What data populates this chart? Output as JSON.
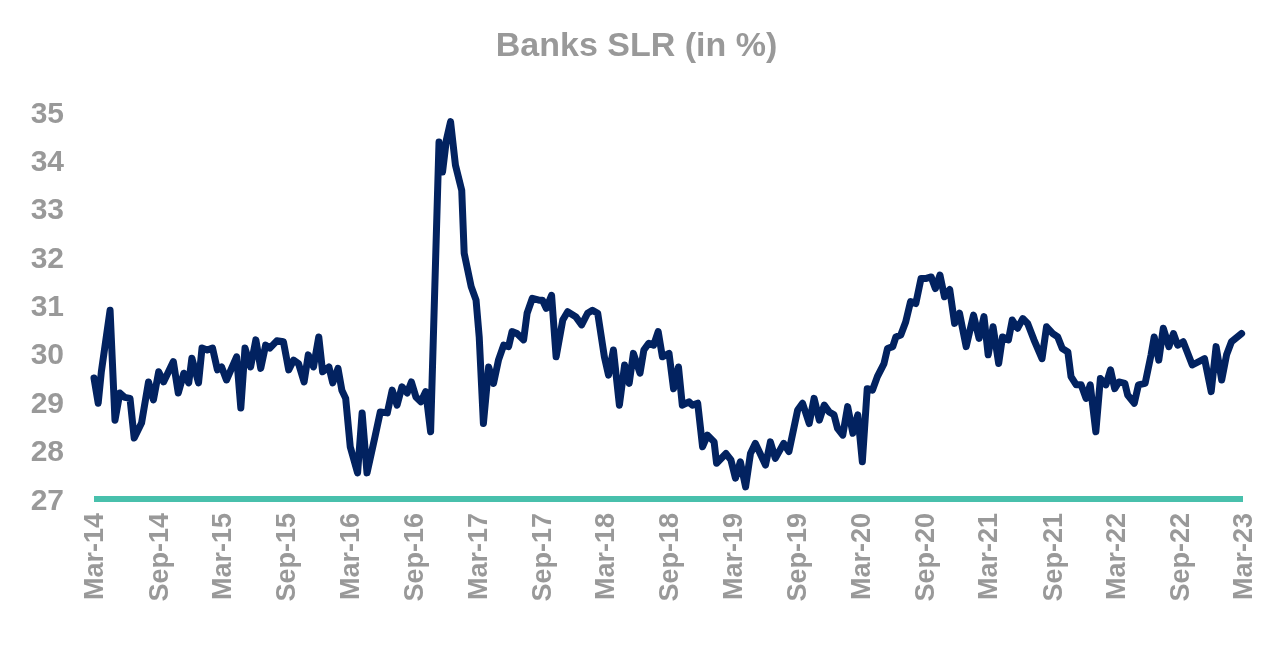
{
  "chart_data": {
    "type": "line",
    "title": "Banks SLR (in %)",
    "color": "#022260",
    "line_style": "solid",
    "marker": "none",
    "grid": false,
    "xlim": [
      "2014-03-01",
      "2023-03-01"
    ],
    "xticks": [
      {
        "value": "2014-03-01",
        "label": "Mar-14"
      },
      {
        "value": "2014-09-01",
        "label": "Sep-14"
      },
      {
        "value": "2015-03-01",
        "label": "Mar-15"
      },
      {
        "value": "2015-09-01",
        "label": "Sep-15"
      },
      {
        "value": "2016-03-01",
        "label": "Mar-16"
      },
      {
        "value": "2016-09-01",
        "label": "Sep-16"
      },
      {
        "value": "2017-03-01",
        "label": "Mar-17"
      },
      {
        "value": "2017-09-01",
        "label": "Sep-17"
      },
      {
        "value": "2018-03-01",
        "label": "Mar-18"
      },
      {
        "value": "2018-09-01",
        "label": "Sep-18"
      },
      {
        "value": "2019-03-01",
        "label": "Mar-19"
      },
      {
        "value": "2019-09-01",
        "label": "Sep-19"
      },
      {
        "value": "2020-03-01",
        "label": "Mar-20"
      },
      {
        "value": "2020-09-01",
        "label": "Sep-20"
      },
      {
        "value": "2021-03-01",
        "label": "Mar-21"
      },
      {
        "value": "2021-09-01",
        "label": "Sep-21"
      },
      {
        "value": "2022-03-01",
        "label": "Mar-22"
      },
      {
        "value": "2022-09-01",
        "label": "Sep-22"
      },
      {
        "value": "2023-03-01",
        "label": "Mar-23"
      }
    ],
    "ylim": [
      27,
      35
    ],
    "yticks": [
      27,
      28,
      29,
      30,
      31,
      32,
      33,
      34,
      35
    ],
    "x": [
      "2014-03-01",
      "2014-03-13",
      "2014-03-22",
      "2014-04-16",
      "2014-04-30",
      "2014-05-14",
      "2014-05-28",
      "2014-06-12",
      "2014-06-24",
      "2014-07-15",
      "2014-08-04",
      "2014-08-18",
      "2014-09-02",
      "2014-09-16",
      "2014-10-14",
      "2014-10-28",
      "2014-11-13",
      "2014-11-27",
      "2014-12-06",
      "2014-12-25",
      "2015-01-04",
      "2015-01-19",
      "2015-02-03",
      "2015-02-17",
      "2015-03-01",
      "2015-03-15",
      "2015-04-13",
      "2015-04-25",
      "2015-05-07",
      "2015-05-23",
      "2015-06-07",
      "2015-06-21",
      "2015-07-05",
      "2015-07-17",
      "2015-08-06",
      "2015-08-25",
      "2015-09-09",
      "2015-09-23",
      "2015-10-07",
      "2015-10-23",
      "2015-11-04",
      "2015-11-19",
      "2015-12-04",
      "2015-12-15",
      "2016-01-02",
      "2016-01-13",
      "2016-01-28",
      "2016-02-08",
      "2016-02-19",
      "2016-03-03",
      "2016-03-24",
      "2016-04-06",
      "2016-04-20",
      "2016-05-13",
      "2016-05-28",
      "2016-06-17",
      "2016-07-01",
      "2016-07-15",
      "2016-07-29",
      "2016-08-13",
      "2016-08-25",
      "2016-09-07",
      "2016-09-21",
      "2016-10-05",
      "2016-10-19",
      "2016-11-12",
      "2016-11-22",
      "2016-12-03",
      "2016-12-15",
      "2016-12-29",
      "2017-01-16",
      "2017-01-23",
      "2017-02-12",
      "2017-02-26",
      "2017-03-07",
      "2017-03-19",
      "2017-04-03",
      "2017-04-17",
      "2017-05-01",
      "2017-05-16",
      "2017-05-30",
      "2017-06-09",
      "2017-06-23",
      "2017-07-12",
      "2017-07-22",
      "2017-08-06",
      "2017-08-25",
      "2017-09-04",
      "2017-09-15",
      "2017-09-30",
      "2017-10-13",
      "2017-11-01",
      "2017-11-15",
      "2017-12-08",
      "2017-12-25",
      "2018-01-11",
      "2018-01-25",
      "2018-02-09",
      "2018-02-28",
      "2018-03-12",
      "2018-03-26",
      "2018-04-12",
      "2018-04-27",
      "2018-05-10",
      "2018-05-22",
      "2018-06-10",
      "2018-06-21",
      "2018-07-05",
      "2018-07-19",
      "2018-08-01",
      "2018-08-13",
      "2018-09-01",
      "2018-09-14",
      "2018-09-28",
      "2018-10-09",
      "2018-10-28",
      "2018-11-07",
      "2018-11-22",
      "2018-12-06",
      "2018-12-20",
      "2019-01-08",
      "2019-01-15",
      "2019-02-11",
      "2019-02-25",
      "2019-03-10",
      "2019-03-24",
      "2019-04-08",
      "2019-04-22",
      "2019-05-06",
      "2019-06-04",
      "2019-06-18",
      "2019-07-02",
      "2019-07-26",
      "2019-08-10",
      "2019-09-04",
      "2019-09-18",
      "2019-10-07",
      "2019-10-21",
      "2019-11-05",
      "2019-11-19",
      "2019-12-03",
      "2019-12-17",
      "2019-12-27",
      "2020-01-11",
      "2020-01-25",
      "2020-02-09",
      "2020-02-23",
      "2020-03-07",
      "2020-03-21",
      "2020-04-05",
      "2020-04-19",
      "2020-05-08",
      "2020-05-18",
      "2020-06-02",
      "2020-06-11",
      "2020-06-25",
      "2020-07-09",
      "2020-07-23",
      "2020-08-07",
      "2020-08-22",
      "2020-09-06",
      "2020-09-20",
      "2020-10-02",
      "2020-10-15",
      "2020-10-28",
      "2020-11-12",
      "2020-11-26",
      "2020-12-10",
      "2020-12-29",
      "2021-01-19",
      "2021-02-04",
      "2021-02-18",
      "2021-03-02",
      "2021-03-16",
      "2021-04-01",
      "2021-04-12",
      "2021-04-29",
      "2021-05-10",
      "2021-05-25",
      "2021-06-09",
      "2021-06-23",
      "2021-07-11",
      "2021-08-03",
      "2021-08-16",
      "2021-09-03",
      "2021-09-17",
      "2021-09-30",
      "2021-10-16",
      "2021-10-25",
      "2021-11-09",
      "2021-11-23",
      "2021-12-07",
      "2021-12-19",
      "2022-01-04",
      "2022-01-17",
      "2022-02-02",
      "2022-02-15",
      "2022-02-27",
      "2022-03-11",
      "2022-03-28",
      "2022-04-05",
      "2022-04-24",
      "2022-05-06",
      "2022-05-25",
      "2022-06-11",
      "2022-06-20",
      "2022-07-03",
      "2022-07-16",
      "2022-08-01",
      "2022-08-14",
      "2022-08-26",
      "2022-09-11",
      "2022-10-07",
      "2022-11-11",
      "2022-11-30",
      "2022-12-14",
      "2022-12-30",
      "2023-01-13",
      "2023-01-27",
      "2023-02-25"
    ],
    "values": [
      29.5,
      28.98,
      29.63,
      30.9,
      28.63,
      29.19,
      29.1,
      29.08,
      28.26,
      28.57,
      29.42,
      29.05,
      29.63,
      29.42,
      29.84,
      29.19,
      29.6,
      29.4,
      29.91,
      29.4,
      30.12,
      30.08,
      30.12,
      29.67,
      29.73,
      29.46,
      29.94,
      28.88,
      30.12,
      29.73,
      30.29,
      29.7,
      30.18,
      30.12,
      30.27,
      30.25,
      29.67,
      29.87,
      29.8,
      29.42,
      29.98,
      29.73,
      30.35,
      29.63,
      29.73,
      29.4,
      29.7,
      29.25,
      29.08,
      28.08,
      27.54,
      28.78,
      27.54,
      28.29,
      28.8,
      28.78,
      29.25,
      28.94,
      29.32,
      29.19,
      29.42,
      29.11,
      29.01,
      29.22,
      28.39,
      34.38,
      33.76,
      34.42,
      34.8,
      33.9,
      33.38,
      32.08,
      31.39,
      31.11,
      30.35,
      28.56,
      29.73,
      29.39,
      29.87,
      30.18,
      30.15,
      30.46,
      30.42,
      30.29,
      30.84,
      31.15,
      31.11,
      31.11,
      30.94,
      31.21,
      29.94,
      30.7,
      30.87,
      30.77,
      30.6,
      30.84,
      30.9,
      30.84,
      29.94,
      29.56,
      30.08,
      28.94,
      29.77,
      29.39,
      30.01,
      29.6,
      30.08,
      30.22,
      30.18,
      30.46,
      29.94,
      30.01,
      29.28,
      29.73,
      28.94,
      29.01,
      28.94,
      28.98,
      28.08,
      28.32,
      28.18,
      27.74,
      27.94,
      27.81,
      27.43,
      27.77,
      27.25,
      27.94,
      28.15,
      27.7,
      28.18,
      27.84,
      28.15,
      27.98,
      28.84,
      28.98,
      28.56,
      29.08,
      28.63,
      28.94,
      28.8,
      28.74,
      28.46,
      28.32,
      28.91,
      28.36,
      28.74,
      27.77,
      29.28,
      29.25,
      29.53,
      29.8,
      30.11,
      30.15,
      30.35,
      30.39,
      30.66,
      31.08,
      31.04,
      31.56,
      31.56,
      31.59,
      31.35,
      31.63,
      31.18,
      31.33,
      30.63,
      30.84,
      30.15,
      30.8,
      30.32,
      30.77,
      29.98,
      30.56,
      29.8,
      30.35,
      30.29,
      30.7,
      30.53,
      30.73,
      30.63,
      30.29,
      29.9,
      30.56,
      30.42,
      30.35,
      30.11,
      30.04,
      29.53,
      29.36,
      29.36,
      29.08,
      29.36,
      28.39,
      29.49,
      29.36,
      29.67,
      29.28,
      29.42,
      29.39,
      29.15,
      28.98,
      29.36,
      29.39,
      29.98,
      30.35,
      29.87,
      30.53,
      30.15,
      30.42,
      30.18,
      30.25,
      29.77,
      29.9,
      29.22,
      30.15,
      29.46,
      29.98,
      30.25,
      30.42
    ]
  }
}
